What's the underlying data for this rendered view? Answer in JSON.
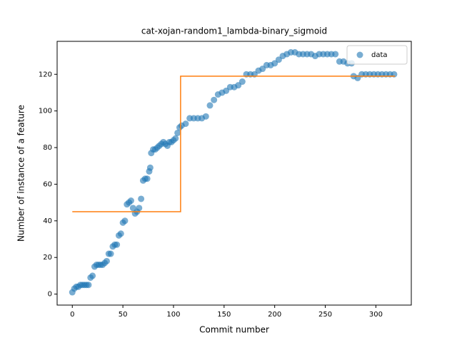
{
  "chart_data": {
    "type": "scatter",
    "title": "cat-xojan-random1_lambda-binary_sigmoid",
    "xlabel": "Commit number",
    "ylabel": "Number of instance of a feature",
    "xlim": [
      -15,
      335
    ],
    "ylim": [
      -6,
      138
    ],
    "xticks": [
      0,
      50,
      100,
      150,
      200,
      250,
      300
    ],
    "yticks": [
      0,
      20,
      40,
      60,
      80,
      100,
      120
    ],
    "legend": "upper right",
    "series": [
      {
        "name": "data",
        "type": "scatter",
        "color": "#1f77b4",
        "x": [
          0,
          2,
          4,
          6,
          8,
          10,
          12,
          14,
          16,
          18,
          20,
          22,
          24,
          26,
          28,
          30,
          32,
          34,
          36,
          38,
          40,
          42,
          44,
          46,
          48,
          50,
          52,
          54,
          56,
          58,
          60,
          62,
          64,
          66,
          68,
          70,
          72,
          74,
          76,
          77,
          78,
          80,
          82,
          84,
          86,
          88,
          90,
          92,
          94,
          96,
          98,
          100,
          102,
          104,
          106,
          108,
          112,
          116,
          120,
          124,
          128,
          132,
          136,
          140,
          144,
          148,
          152,
          156,
          160,
          164,
          168,
          172,
          176,
          180,
          184,
          188,
          192,
          196,
          200,
          204,
          208,
          212,
          216,
          220,
          224,
          228,
          232,
          236,
          240,
          244,
          248,
          252,
          256,
          260,
          264,
          268,
          272,
          276,
          278,
          282,
          286,
          290,
          294,
          298,
          302,
          306,
          310,
          314,
          318
        ],
        "values": [
          1,
          3,
          4,
          4,
          5,
          5,
          5,
          5,
          5,
          9,
          10,
          15,
          16,
          16,
          16,
          16,
          17,
          18,
          22,
          22,
          26,
          27,
          27,
          32,
          33,
          39,
          40,
          49,
          50,
          51,
          47,
          44,
          45,
          47,
          52,
          62,
          63,
          63,
          67,
          69,
          77,
          79,
          79,
          80,
          81,
          82,
          83,
          82,
          81,
          83,
          83,
          84,
          85,
          88,
          91,
          92,
          93,
          96,
          96,
          96,
          96,
          97,
          103,
          106,
          109,
          110,
          111,
          113,
          113,
          114,
          116,
          120,
          120,
          120,
          122,
          123,
          125,
          125,
          126,
          128,
          130,
          131,
          132,
          132,
          131,
          131,
          131,
          131,
          130,
          131,
          131,
          131,
          131,
          131,
          127,
          127,
          126,
          126,
          119,
          118,
          120,
          120,
          120,
          120,
          120,
          120,
          120,
          120,
          120
        ]
      },
      {
        "type": "line",
        "color": "#ff7f0e",
        "x": [
          0,
          107,
          107,
          319
        ],
        "values": [
          45,
          45,
          119,
          119
        ]
      }
    ]
  }
}
